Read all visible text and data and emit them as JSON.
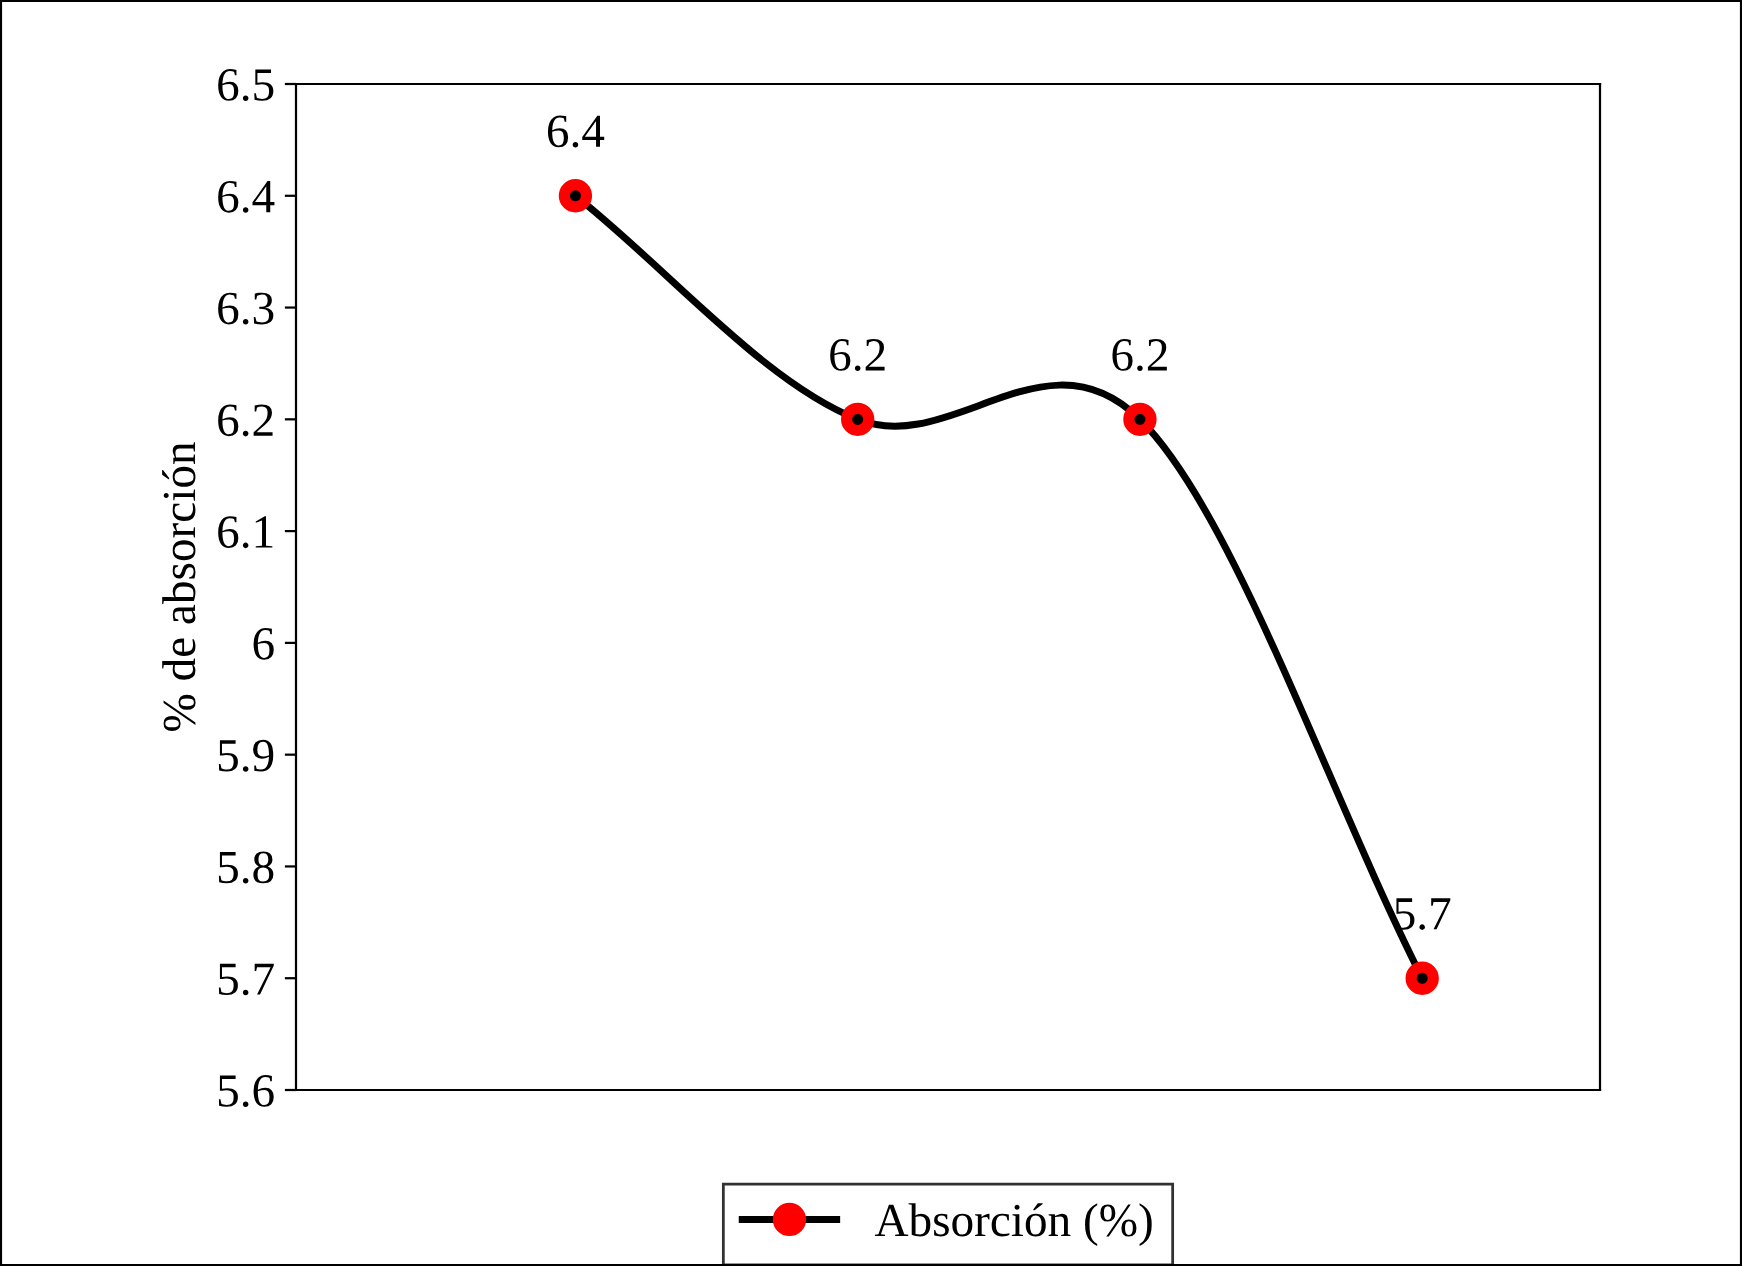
{
  "chart_data": {
    "type": "line",
    "ylabel": "% de absorción",
    "categories": [
      null,
      null,
      null,
      null
    ],
    "series": [
      {
        "name": "Absorción (%)",
        "color": "#000000",
        "values": [
          6.4,
          6.2,
          6.2,
          5.7
        ]
      }
    ],
    "ylim": [
      5.6,
      6.5
    ],
    "yticks": [
      {
        "value": 5.6,
        "label": "5.6"
      },
      {
        "value": 5.7,
        "label": "5.7"
      },
      {
        "value": 5.8,
        "label": "5.8"
      },
      {
        "value": 5.9,
        "label": "5.9"
      },
      {
        "value": 6.0,
        "label": "6"
      },
      {
        "value": 6.1,
        "label": "6.1"
      },
      {
        "value": 6.2,
        "label": "6.2"
      },
      {
        "value": 6.3,
        "label": "6.3"
      },
      {
        "value": 6.4,
        "label": "6.4"
      },
      {
        "value": 6.5,
        "label": "6.5"
      }
    ],
    "tick_labels": "y",
    "grid": false,
    "legend": "bottom",
    "marker": "circle",
    "line_style": "solid",
    "data_labels": true
  }
}
